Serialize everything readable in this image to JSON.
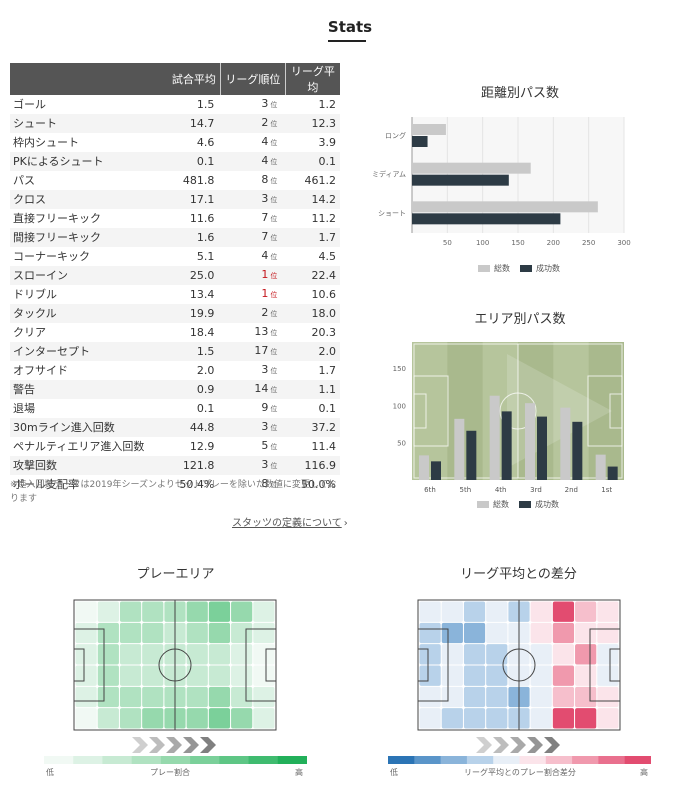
{
  "page": {
    "title": "Stats"
  },
  "stats_table": {
    "headers": [
      "",
      "試合平均",
      "リーグ順位",
      "リーグ平均"
    ],
    "rank_suffix": "位",
    "rows": [
      {
        "name": "ゴール",
        "avg": "1.5",
        "rank": "3",
        "league": "1.2"
      },
      {
        "name": "シュート",
        "avg": "14.7",
        "rank": "2",
        "league": "12.3"
      },
      {
        "name": "枠内シュート",
        "avg": "4.6",
        "rank": "4",
        "league": "3.9"
      },
      {
        "name": "PKによるシュート",
        "avg": "0.1",
        "rank": "4",
        "league": "0.1"
      },
      {
        "name": "パス",
        "avg": "481.8",
        "rank": "8",
        "league": "461.2"
      },
      {
        "name": "クロス",
        "avg": "17.1",
        "rank": "3",
        "league": "14.2"
      },
      {
        "name": "直接フリーキック",
        "avg": "11.6",
        "rank": "7",
        "league": "11.2"
      },
      {
        "name": "間接フリーキック",
        "avg": "1.6",
        "rank": "7",
        "league": "1.7"
      },
      {
        "name": "コーナーキック",
        "avg": "5.1",
        "rank": "4",
        "league": "4.5"
      },
      {
        "name": "スローイン",
        "avg": "25.0",
        "rank": "1",
        "league": "22.4"
      },
      {
        "name": "ドリブル",
        "avg": "13.4",
        "rank": "1",
        "league": "10.6"
      },
      {
        "name": "タックル",
        "avg": "19.9",
        "rank": "2",
        "league": "18.0"
      },
      {
        "name": "クリア",
        "avg": "18.4",
        "rank": "13",
        "league": "20.3"
      },
      {
        "name": "インターセプト",
        "avg": "1.5",
        "rank": "17",
        "league": "2.0"
      },
      {
        "name": "オフサイド",
        "avg": "2.0",
        "rank": "3",
        "league": "1.7"
      },
      {
        "name": "警告",
        "avg": "0.9",
        "rank": "14",
        "league": "1.1"
      },
      {
        "name": "退場",
        "avg": "0.1",
        "rank": "9",
        "league": "0.1"
      },
      {
        "name": "30mライン進入回数",
        "avg": "44.8",
        "rank": "3",
        "league": "37.2"
      },
      {
        "name": "ペナルティエリア進入回数",
        "avg": "12.9",
        "rank": "5",
        "league": "11.4"
      },
      {
        "name": "攻撃回数",
        "avg": "121.8",
        "rank": "3",
        "league": "116.9"
      },
      {
        "name": "ボール支配率",
        "avg": "50.4%",
        "rank": "8",
        "league": "50.0%"
      }
    ],
    "footnote": "※進入回数データは2019年シーズンよりセットプレーを除いた数値に変更しております",
    "definition_link": "スタッツの定義について"
  },
  "colors": {
    "total": "#c9c9c9",
    "success": "#2d3b45",
    "pitch": "#a9b98d",
    "red": "#c4161c"
  },
  "chart_data": [
    {
      "type": "bar",
      "orientation": "horizontal",
      "title": "距離別パス数",
      "categories": [
        "ロング",
        "ミディアム",
        "ショート"
      ],
      "series": [
        {
          "name": "総数",
          "values": [
            48,
            168,
            263
          ]
        },
        {
          "name": "成功数",
          "values": [
            22,
            137,
            210
          ]
        }
      ],
      "xlim": [
        0,
        300
      ],
      "xticks": [
        50,
        100,
        150,
        200,
        250,
        300
      ],
      "legend": "bottom"
    },
    {
      "type": "bar",
      "title": "エリア別パス数",
      "categories": [
        "6th",
        "5th",
        "4th",
        "3rd",
        "2nd",
        "1st"
      ],
      "series": [
        {
          "name": "総数",
          "values": [
            33,
            82,
            113,
            103,
            97,
            34
          ]
        },
        {
          "name": "成功数",
          "values": [
            25,
            66,
            92,
            85,
            78,
            18
          ]
        }
      ],
      "ylim": [
        0,
        185
      ],
      "yticks": [
        50,
        100,
        150
      ],
      "legend": "bottom"
    }
  ],
  "heatmaps": {
    "play_area": {
      "title": "プレーエリア",
      "scale_low": "低",
      "scale_mid": "プレー割合",
      "scale_high": "高",
      "scale_colors": [
        "#f1f9f4",
        "#ddf2e5",
        "#c7ead3",
        "#b0e2c1",
        "#96d9ad",
        "#7bd09a",
        "#5ec685",
        "#3fbb6f",
        "#22b05a"
      ]
    },
    "league_diff": {
      "title": "リーグ平均との差分",
      "scale_low": "低",
      "scale_mid": "リーグ平均とのプレー割合差分",
      "scale_high": "高",
      "scale_colors": [
        "#2b74b5",
        "#5a95c9",
        "#8ab4da",
        "#b8d2ea",
        "#e8eff7",
        "#fbe4ea",
        "#f6bfcc",
        "#f099ad",
        "#e9708e",
        "#e24c70"
      ]
    }
  }
}
